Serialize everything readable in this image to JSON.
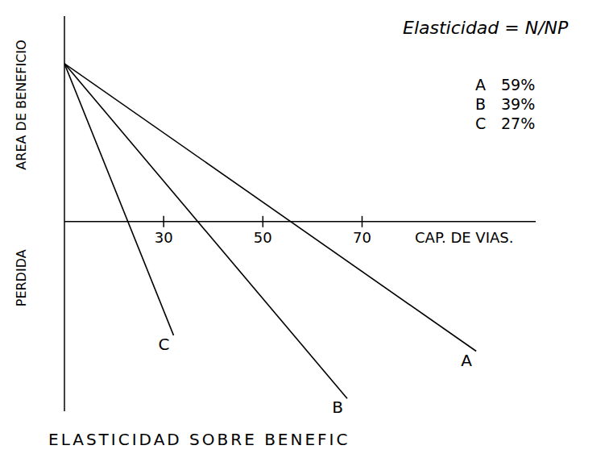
{
  "chart_data": {
    "type": "line",
    "title": "ELASTICIDAD SOBRE BENEFIC",
    "annotation": "Elasticidad = N/NP",
    "xlabel": "CAP. DE VIAS.",
    "ylabel": "AREA DE BENEFICIO",
    "ylabel_negative": "PERDIDA",
    "xlim": [
      10,
      105
    ],
    "xticks": [
      30,
      50,
      70
    ],
    "ylim": [
      -120,
      130
    ],
    "tick_labels": "x",
    "grid": false,
    "series": [
      {
        "name": "A",
        "color": "#000000",
        "x": [
          10,
          93
        ],
        "values": [
          100,
          -82
        ],
        "elasticidad": {
          "value": 59,
          "label": "59%"
        }
      },
      {
        "name": "B",
        "color": "#000000",
        "x": [
          10,
          67
        ],
        "values": [
          100,
          -112
        ],
        "elasticidad": {
          "value": 39,
          "label": "39%"
        }
      },
      {
        "name": "C",
        "color": "#000000",
        "x": [
          10,
          32
        ],
        "values": [
          100,
          -72
        ],
        "elasticidad": {
          "value": 27,
          "label": "27%"
        }
      }
    ]
  }
}
